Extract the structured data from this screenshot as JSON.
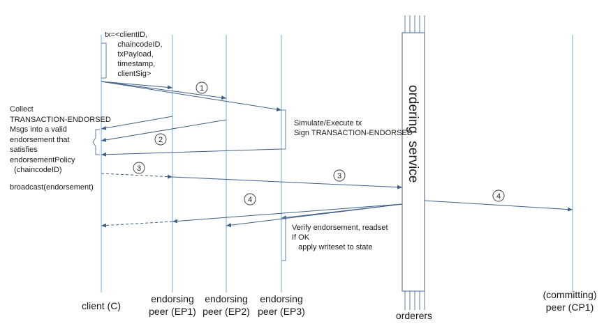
{
  "participants": {
    "client": "client (C)",
    "ep1": "endorsing\npeer (EP1)",
    "ep2": "endorsing\npeer (EP2)",
    "ep3": "endorsing\npeer (EP3)",
    "orderers": "orderers",
    "cp1": "(committing)\npeer (CP1)"
  },
  "ordering_service": "ordering  service",
  "tx_definition": "tx=<clientID,\n      chaincodeID,\n      txPayload,\n      timestamp,\n      clientSig>",
  "collect_note": "Collect\nTRANSACTION-ENDORSED\nMsgs into a valid\nendorsement that\nsatisfies\nendorsementPolicy\n  (chaincodeID)",
  "broadcast": "broadcast(endorsement)",
  "simulate_note": "Simulate/Execute tx\nSign TRANSACTION-ENDORSED",
  "verify_note": "Verify endorsement, readset\nIf OK\n   apply writeset to state",
  "step_markers": [
    "1",
    "2",
    "3",
    "3",
    "4",
    "4"
  ],
  "colors": {
    "line": "#5b7fa6",
    "lifeline": "#8ec3e0",
    "text": "#1a1a1a"
  }
}
